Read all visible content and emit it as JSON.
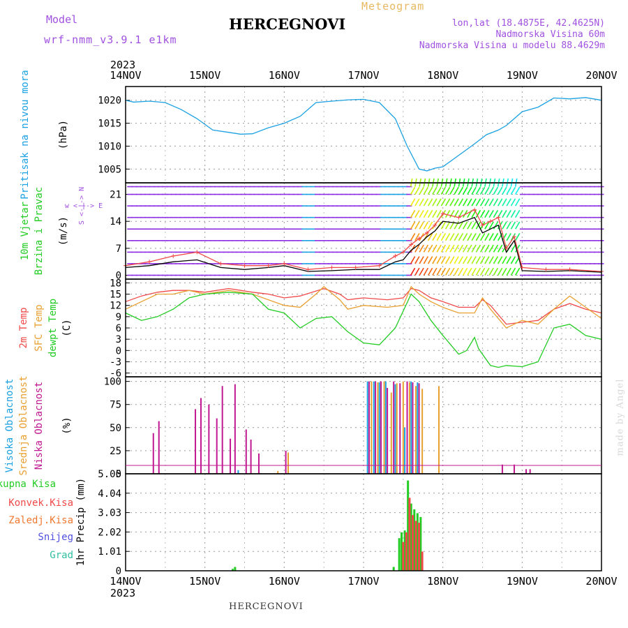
{
  "header": {
    "model_label": "Model",
    "model_name": "wrf-nmm_v3.9.1 e1km",
    "title": "HERCEGNOVI",
    "subtitle": "Meteogram",
    "coords": "lon,lat (18.4875E, 42.4625N)",
    "elevation": "Nadmorska Visina 60m",
    "model_elevation": "Nadmorska Visina u modelu 88.4629m",
    "footer_name": "HERCEGNOVI",
    "credit": "made by Angel",
    "year": "2023"
  },
  "colors": {
    "pressure": "#1ba1e2",
    "temp_2m": "#f04848",
    "temp_sfc": "#e8a030",
    "temp_dew": "#22cc22",
    "cloud_high": "#1ba1e2",
    "cloud_mid": "#e8a030",
    "cloud_low": "#c01890",
    "precip_total": "#22cc22",
    "precip_conv": "#f04848",
    "precip_strat": "#f07830",
    "snow": "#5050e0",
    "hail": "#30c0a0",
    "wind": "#8b2be2",
    "wind_speed": "#000000",
    "gust": "#f04848",
    "compass": "#a050e0",
    "model_text": "#a050e0",
    "subtitle_text": "#e8b860",
    "credit_text": "#d8d8d8"
  },
  "x_axis": {
    "labels": [
      "14NOV",
      "15NOV",
      "16NOV",
      "17NOV",
      "18NOV",
      "19NOV",
      "20NOV"
    ],
    "start_day": 14,
    "end_day": 20
  },
  "chart_data": [
    {
      "id": "pressure",
      "type": "line",
      "ylabel": "Pritisak na nivou mora",
      "unit": "(hPa)",
      "ylim": [
        1002,
        1023
      ],
      "yticks": [
        1005,
        1010,
        1015,
        1020
      ],
      "grid": true,
      "series": [
        {
          "color_key": "pressure",
          "x": [
            14.0,
            14.1,
            14.3,
            14.5,
            14.7,
            14.9,
            15.1,
            15.3,
            15.45,
            15.6,
            15.8,
            16.0,
            16.2,
            16.4,
            16.6,
            16.8,
            17.0,
            17.2,
            17.4,
            17.55,
            17.7,
            17.8,
            17.9,
            18.0,
            18.2,
            18.4,
            18.55,
            18.7,
            18.8,
            18.9,
            19.0,
            19.2,
            19.4,
            19.6,
            19.8,
            20.0
          ],
          "y": [
            1020,
            1019.6,
            1019.8,
            1019.5,
            1018,
            1016,
            1013.5,
            1013,
            1012.6,
            1012.7,
            1014,
            1015,
            1016.5,
            1019.5,
            1019.8,
            1020.1,
            1020.2,
            1019.5,
            1016,
            1010,
            1005,
            1004.6,
            1005.2,
            1005.5,
            1008,
            1010.5,
            1012.5,
            1013.5,
            1014.5,
            1016,
            1017.5,
            1018.5,
            1020.5,
            1020.3,
            1020.6,
            1020
          ]
        }
      ]
    },
    {
      "id": "wind",
      "type": "line",
      "ylabel": "10m Vjetar",
      "ylabel2": "Brzina i Pravac",
      "unit": "(m/s)",
      "compass": "w <-|-> E",
      "compass_ns": "S <-|-> N",
      "ylim": [
        -1,
        24
      ],
      "yticks": [
        0,
        7,
        14,
        21
      ],
      "grid": true,
      "series": [
        {
          "name": "speed",
          "color_key": "wind_speed",
          "x": [
            14.0,
            14.3,
            14.6,
            14.9,
            15.2,
            15.5,
            15.8,
            16.0,
            16.3,
            16.6,
            16.9,
            17.2,
            17.4,
            17.5,
            17.6,
            17.7,
            17.8,
            17.9,
            18.0,
            18.2,
            18.4,
            18.5,
            18.6,
            18.7,
            18.8,
            18.9,
            19.0,
            19.3,
            19.6,
            20.0
          ],
          "y": [
            2,
            2.5,
            3.5,
            4,
            2,
            1.5,
            2,
            2.5,
            1,
            1.2,
            1.5,
            1.5,
            3.5,
            4,
            6.5,
            8,
            10,
            11.5,
            14,
            13.5,
            15,
            11,
            12,
            13,
            6,
            9,
            1.2,
            1,
            1.2,
            0.8
          ]
        },
        {
          "name": "gust",
          "color_key": "gust",
          "x": [
            14.0,
            14.3,
            14.6,
            14.9,
            15.2,
            15.5,
            15.8,
            16.0,
            16.3,
            16.6,
            16.9,
            17.2,
            17.4,
            17.5,
            17.6,
            17.7,
            17.8,
            17.9,
            18.0,
            18.2,
            18.4,
            18.5,
            18.6,
            18.7,
            18.8,
            18.9,
            19.0,
            19.3,
            19.6,
            20.0
          ],
          "y": [
            2.5,
            3.5,
            5,
            6,
            3,
            2.5,
            2.5,
            3,
            1.5,
            2,
            2,
            2.5,
            5,
            6,
            8,
            9.5,
            11,
            13,
            16,
            15,
            17,
            13,
            14,
            15,
            7,
            10,
            2,
            1.5,
            1.5,
            1
          ]
        }
      ]
    },
    {
      "id": "temperature",
      "type": "line",
      "ylabel": "2m Temp",
      "ylabel2": "SFC Temp",
      "ylabel3": "dewpt Temp",
      "unit": "(C)",
      "ylim": [
        -7,
        19
      ],
      "yticks": [
        -6,
        -3,
        0,
        3,
        6,
        9,
        12,
        15,
        18
      ],
      "grid": true,
      "series": [
        {
          "color_key": "temp_2m",
          "x": [
            14.0,
            14.2,
            14.4,
            14.6,
            14.8,
            15.0,
            15.3,
            15.6,
            15.8,
            16.0,
            16.2,
            16.5,
            16.7,
            16.8,
            17.0,
            17.3,
            17.5,
            17.6,
            17.7,
            17.85,
            18.0,
            18.2,
            18.4,
            18.5,
            18.6,
            18.8,
            19.0,
            19.2,
            19.4,
            19.6,
            19.8,
            20.0
          ],
          "y": [
            13,
            14.5,
            15.5,
            16,
            16,
            15.5,
            16.5,
            15.5,
            15,
            14,
            14.5,
            16.5,
            15,
            13.5,
            14,
            13.5,
            14,
            16.5,
            16,
            14,
            13,
            11.5,
            11.5,
            13.5,
            12,
            7,
            7.5,
            8,
            11,
            12.5,
            11,
            10
          ]
        },
        {
          "color_key": "temp_sfc",
          "x": [
            14.0,
            14.2,
            14.4,
            14.6,
            14.8,
            15.0,
            15.3,
            15.6,
            15.8,
            16.0,
            16.2,
            16.4,
            16.5,
            16.7,
            16.8,
            17.0,
            17.3,
            17.5,
            17.6,
            17.7,
            17.85,
            18.0,
            18.2,
            18.4,
            18.5,
            18.6,
            18.8,
            19.0,
            19.2,
            19.4,
            19.6,
            19.8,
            20.0
          ],
          "y": [
            11,
            13,
            15,
            15,
            16,
            15,
            16,
            15,
            13.5,
            12,
            11.5,
            15,
            17,
            13.5,
            11,
            12,
            11.5,
            12,
            17,
            15,
            13,
            11.5,
            10,
            10,
            14,
            11,
            6,
            8,
            7,
            11,
            14.5,
            11.5,
            8.5
          ]
        },
        {
          "color_key": "temp_dew",
          "x": [
            14.0,
            14.2,
            14.4,
            14.6,
            14.8,
            15.0,
            15.3,
            15.6,
            15.8,
            16.0,
            16.2,
            16.4,
            16.6,
            16.8,
            17.0,
            17.2,
            17.4,
            17.6,
            17.7,
            17.85,
            18.0,
            18.2,
            18.3,
            18.4,
            18.45,
            18.5,
            18.6,
            18.7,
            18.8,
            19.0,
            19.2,
            19.4,
            19.6,
            19.8,
            20.0
          ],
          "y": [
            10,
            8,
            9,
            11,
            14,
            15,
            15.5,
            15,
            11,
            10,
            6,
            8.5,
            9,
            5,
            2,
            1.5,
            6,
            15,
            13,
            8,
            4,
            -1,
            0,
            3.5,
            0.5,
            -1,
            -4,
            -4.5,
            -4,
            -4.3,
            -3,
            6,
            7,
            4,
            3
          ]
        }
      ]
    },
    {
      "id": "clouds",
      "type": "bar",
      "ylabel": "Visoka Oblacnost",
      "ylabel2": "Srednja Oblacnost",
      "ylabel3": "Niska Oblacnost",
      "unit": "(%)",
      "ylim": [
        0,
        105
      ],
      "yticks": [
        0,
        25,
        50,
        75,
        100
      ],
      "grid": true,
      "series": [
        {
          "color_key": "cloud_low",
          "x": [
            14.35,
            14.42,
            14.88,
            14.95,
            15.05,
            15.15,
            15.22,
            15.32,
            15.38,
            15.52,
            15.58,
            15.68,
            16.02,
            17.07,
            17.15,
            17.22,
            17.3,
            17.38,
            17.46,
            17.55,
            17.62,
            17.7,
            18.75,
            18.9,
            19.05,
            19.1
          ],
          "y": [
            44,
            57,
            70,
            82,
            75,
            60,
            95,
            38,
            97,
            48,
            37,
            22,
            25,
            100,
            100,
            100,
            93,
            100,
            98,
            100,
            99,
            98,
            10,
            10,
            5,
            5
          ]
        },
        {
          "color_key": "cloud_mid",
          "x": [
            15.92,
            16.05,
            17.1,
            17.18,
            17.26,
            17.35,
            17.42,
            17.5,
            17.58,
            17.66,
            17.74,
            17.95
          ],
          "y": [
            3,
            23,
            100,
            99,
            100,
            88,
            98,
            100,
            99,
            95,
            92,
            95
          ]
        },
        {
          "color_key": "cloud_high",
          "x": [
            15.42,
            17.05,
            17.13,
            17.2,
            17.28,
            17.4,
            17.52,
            17.6,
            17.68
          ],
          "y": [
            4,
            100,
            100,
            99,
            100,
            97,
            50,
            100,
            99
          ]
        }
      ]
    },
    {
      "id": "precip",
      "type": "bar",
      "ylabel": "1hr Precip (mm)",
      "legend": [
        "Ukupna Kisa",
        "Konvek.Kisa",
        "Zaledj.Kisa",
        "Snijeg",
        "Grad"
      ],
      "unit": "",
      "ylim": [
        0,
        5.05
      ],
      "yticks": [
        0,
        1.01,
        2.02,
        3.03,
        4.04,
        5.05
      ],
      "grid": true,
      "series": [
        {
          "color_key": "precip_total",
          "x": [
            15.35,
            15.38,
            17.38,
            17.45,
            17.48,
            17.52,
            17.56,
            17.6,
            17.64,
            17.68,
            17.72
          ],
          "y": [
            0.1,
            0.2,
            0.2,
            1.7,
            2.0,
            2.1,
            4.7,
            3.5,
            3.2,
            3.0,
            2.8
          ]
        },
        {
          "color_key": "precip_conv",
          "x": [
            17.5,
            17.54,
            17.58,
            17.62,
            17.66,
            17.7,
            17.74
          ],
          "y": [
            1.5,
            2.0,
            3.8,
            2.9,
            2.6,
            2.5,
            1.0
          ]
        }
      ]
    }
  ]
}
